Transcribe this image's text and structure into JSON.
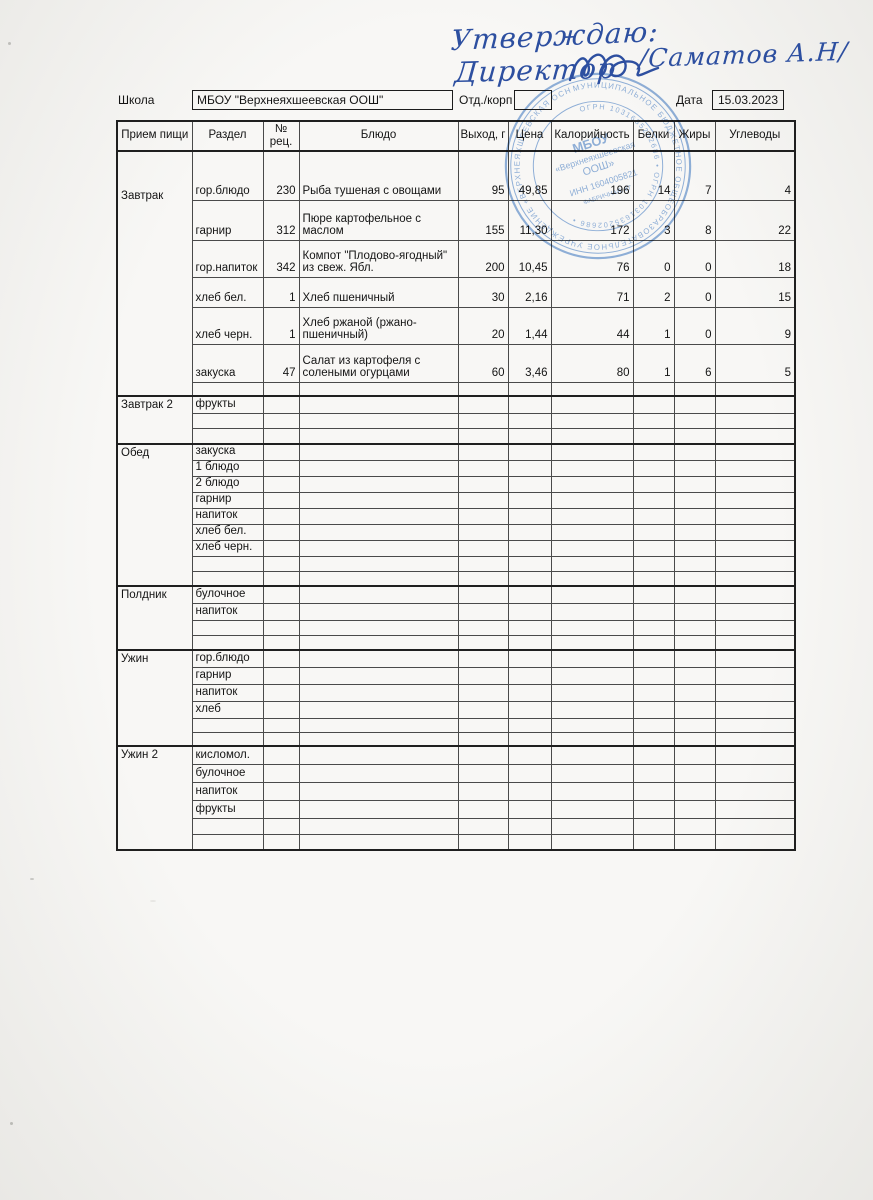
{
  "colors": {
    "pen_blue": "#2d4fa0",
    "stamp_blue": "#4f85cc",
    "paper": "#f4f3f0"
  },
  "document": {
    "handwriting": {
      "approve": "Утверждаю:",
      "director": "Директор",
      "name": "/Саматов А.Н/"
    },
    "stamp": {
      "ring_text": "МУНИЦИПАЛЬНОЕ БЮДЖЕТНОЕ ОБЩЕОБРАЗОВАТЕЛЬНОЕ УЧРЕЖДЕНИЕ «ВЕРХНЕЯХШЕЕВСКАЯ ОСНОВНАЯ ОБЩЕОБРАЗОВАТЕЛЬНАЯ ШКОЛА»",
      "ogrn_ring": "ОГРН 1031635202686 • ОГРН 1031635202686 •",
      "center_line1": "МБОУ",
      "center_line2": "«Верхнеяхшеевская",
      "center_line3": "ООШ»",
      "center_line4": "ИНН 1604005821",
      "center_line5": "ФАБРИЧНАЯ, 87"
    },
    "fields": {
      "school_label": "Школа",
      "school_value": "МБОУ \"Верхнеяхшеевская ООШ\"",
      "dept_label": "Отд./корп",
      "dept_value": "",
      "date_label": "Дата",
      "date_value": "15.03.2023"
    }
  },
  "table": {
    "columns": [
      "Прием пищи",
      "Раздел",
      "№ рец.",
      "Блюдо",
      "Выход, г",
      "Цена",
      "Калорийность",
      "Белки",
      "Жиры",
      "Углеводы"
    ],
    "sections": [
      {
        "meal": "Завтрак",
        "rows": [
          {
            "razdel": "гор.блюдо",
            "num": "230",
            "dish": "Рыба тушеная с овощами",
            "out": "95",
            "price": "49,85",
            "kcal": "196",
            "protein": "14",
            "fat": "7",
            "carbs": "4"
          },
          {
            "razdel": "гарнир",
            "num": "312",
            "dish": "Пюре картофельное с маслом",
            "out": "155",
            "price": "11,30",
            "kcal": "172",
            "protein": "3",
            "fat": "8",
            "carbs": "22"
          },
          {
            "razdel": "гор.напиток",
            "num": "342",
            "dish": "Компот \"Плодово-ягодный\" из свеж. Ябл.",
            "out": "200",
            "price": "10,45",
            "kcal": "76",
            "protein": "0",
            "fat": "0",
            "carbs": "18"
          },
          {
            "razdel": "хлеб бел.",
            "num": "1",
            "dish": "Хлеб пшеничный",
            "out": "30",
            "price": "2,16",
            "kcal": "71",
            "protein": "2",
            "fat": "0",
            "carbs": "15"
          },
          {
            "razdel": "хлеб черн.",
            "num": "1",
            "dish": "Хлеб ржаной (ржано-пшеничный)",
            "out": "20",
            "price": "1,44",
            "kcal": "44",
            "protein": "1",
            "fat": "0",
            "carbs": "9"
          },
          {
            "razdel": "закуска",
            "num": "47",
            "dish": "Салат из картофеля с солеными огурцами",
            "out": "60",
            "price": "3,46",
            "kcal": "80",
            "protein": "1",
            "fat": "6",
            "carbs": "5"
          },
          {
            "razdel": "",
            "num": "",
            "dish": "",
            "out": "",
            "price": "",
            "kcal": "",
            "protein": "",
            "fat": "",
            "carbs": ""
          }
        ]
      },
      {
        "meal": "Завтрак 2",
        "rows": [
          {
            "razdel": "фрукты",
            "num": "",
            "dish": "",
            "out": "",
            "price": "",
            "kcal": "",
            "protein": "",
            "fat": "",
            "carbs": ""
          },
          {
            "razdel": "",
            "num": "",
            "dish": "",
            "out": "",
            "price": "",
            "kcal": "",
            "protein": "",
            "fat": "",
            "carbs": ""
          },
          {
            "razdel": "",
            "num": "",
            "dish": "",
            "out": "",
            "price": "",
            "kcal": "",
            "protein": "",
            "fat": "",
            "carbs": ""
          }
        ]
      },
      {
        "meal": "Обед",
        "rows": [
          {
            "razdel": "закуска",
            "num": "",
            "dish": "",
            "out": "",
            "price": "",
            "kcal": "",
            "protein": "",
            "fat": "",
            "carbs": ""
          },
          {
            "razdel": "1 блюдо",
            "num": "",
            "dish": "",
            "out": "",
            "price": "",
            "kcal": "",
            "protein": "",
            "fat": "",
            "carbs": ""
          },
          {
            "razdel": "2 блюдо",
            "num": "",
            "dish": "",
            "out": "",
            "price": "",
            "kcal": "",
            "protein": "",
            "fat": "",
            "carbs": ""
          },
          {
            "razdel": "гарнир",
            "num": "",
            "dish": "",
            "out": "",
            "price": "",
            "kcal": "",
            "protein": "",
            "fat": "",
            "carbs": ""
          },
          {
            "razdel": "напиток",
            "num": "",
            "dish": "",
            "out": "",
            "price": "",
            "kcal": "",
            "protein": "",
            "fat": "",
            "carbs": ""
          },
          {
            "razdel": "хлеб бел.",
            "num": "",
            "dish": "",
            "out": "",
            "price": "",
            "kcal": "",
            "protein": "",
            "fat": "",
            "carbs": ""
          },
          {
            "razdel": "хлеб черн.",
            "num": "",
            "dish": "",
            "out": "",
            "price": "",
            "kcal": "",
            "protein": "",
            "fat": "",
            "carbs": ""
          },
          {
            "razdel": "",
            "num": "",
            "dish": "",
            "out": "",
            "price": "",
            "kcal": "",
            "protein": "",
            "fat": "",
            "carbs": ""
          },
          {
            "razdel": "",
            "num": "",
            "dish": "",
            "out": "",
            "price": "",
            "kcal": "",
            "protein": "",
            "fat": "",
            "carbs": ""
          }
        ]
      },
      {
        "meal": "Полдник",
        "rows": [
          {
            "razdel": "булочное",
            "num": "",
            "dish": "",
            "out": "",
            "price": "",
            "kcal": "",
            "protein": "",
            "fat": "",
            "carbs": ""
          },
          {
            "razdel": "напиток",
            "num": "",
            "dish": "",
            "out": "",
            "price": "",
            "kcal": "",
            "protein": "",
            "fat": "",
            "carbs": ""
          },
          {
            "razdel": "",
            "num": "",
            "dish": "",
            "out": "",
            "price": "",
            "kcal": "",
            "protein": "",
            "fat": "",
            "carbs": ""
          },
          {
            "razdel": "",
            "num": "",
            "dish": "",
            "out": "",
            "price": "",
            "kcal": "",
            "protein": "",
            "fat": "",
            "carbs": ""
          }
        ]
      },
      {
        "meal": "Ужин",
        "rows": [
          {
            "razdel": "гор.блюдо",
            "num": "",
            "dish": "",
            "out": "",
            "price": "",
            "kcal": "",
            "protein": "",
            "fat": "",
            "carbs": ""
          },
          {
            "razdel": "гарнир",
            "num": "",
            "dish": "",
            "out": "",
            "price": "",
            "kcal": "",
            "protein": "",
            "fat": "",
            "carbs": ""
          },
          {
            "razdel": "напиток",
            "num": "",
            "dish": "",
            "out": "",
            "price": "",
            "kcal": "",
            "protein": "",
            "fat": "",
            "carbs": ""
          },
          {
            "razdel": "хлеб",
            "num": "",
            "dish": "",
            "out": "",
            "price": "",
            "kcal": "",
            "protein": "",
            "fat": "",
            "carbs": ""
          },
          {
            "razdel": "",
            "num": "",
            "dish": "",
            "out": "",
            "price": "",
            "kcal": "",
            "protein": "",
            "fat": "",
            "carbs": ""
          },
          {
            "razdel": "",
            "num": "",
            "dish": "",
            "out": "",
            "price": "",
            "kcal": "",
            "protein": "",
            "fat": "",
            "carbs": ""
          }
        ]
      },
      {
        "meal": "Ужин 2",
        "rows": [
          {
            "razdel": "кисломол.",
            "num": "",
            "dish": "",
            "out": "",
            "price": "",
            "kcal": "",
            "protein": "",
            "fat": "",
            "carbs": ""
          },
          {
            "razdel": "булочное",
            "num": "",
            "dish": "",
            "out": "",
            "price": "",
            "kcal": "",
            "protein": "",
            "fat": "",
            "carbs": ""
          },
          {
            "razdel": "напиток",
            "num": "",
            "dish": "",
            "out": "",
            "price": "",
            "kcal": "",
            "protein": "",
            "fat": "",
            "carbs": ""
          },
          {
            "razdel": "фрукты",
            "num": "",
            "dish": "",
            "out": "",
            "price": "",
            "kcal": "",
            "protein": "",
            "fat": "",
            "carbs": ""
          },
          {
            "razdel": "",
            "num": "",
            "dish": "",
            "out": "",
            "price": "",
            "kcal": "",
            "protein": "",
            "fat": "",
            "carbs": ""
          },
          {
            "razdel": "",
            "num": "",
            "dish": "",
            "out": "",
            "price": "",
            "kcal": "",
            "protein": "",
            "fat": "",
            "carbs": ""
          }
        ]
      }
    ]
  }
}
